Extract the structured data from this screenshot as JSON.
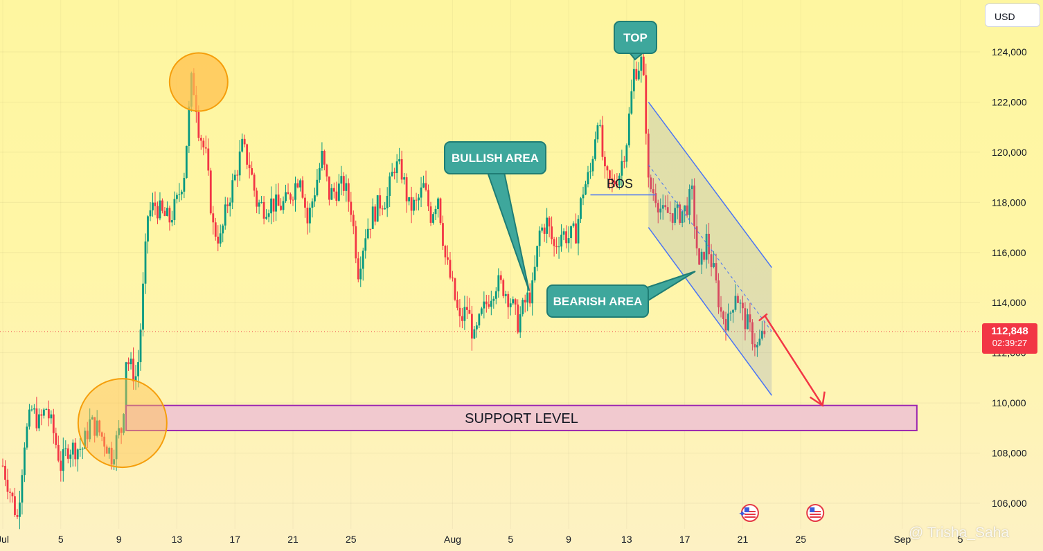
{
  "currency_button": "USD",
  "last_price": "112,848",
  "countdown": "02:39:27",
  "watermark": "@ Trisha_Saha",
  "colors": {
    "up": "#089981",
    "down": "#f23645",
    "callout": "#3ea79c",
    "channel": "#4a74f4",
    "support_border": "#9c27b0",
    "support_fill": "#f1c9cf",
    "highlight": "#ffc04d"
  },
  "chart_data": {
    "type": "candlestick",
    "ylim": [
      105000,
      125500
    ],
    "y_ticks": [
      106000,
      108000,
      110000,
      112000,
      114000,
      116000,
      118000,
      120000,
      122000,
      124000
    ],
    "y_tick_labels": [
      "106,000",
      "108,000",
      "110,000",
      "112,000",
      "114,000",
      "116,000",
      "118,000",
      "120,000",
      "122,000",
      "124,000"
    ],
    "x_labels": [
      "Jul",
      "5",
      "9",
      "13",
      "17",
      "21",
      "25",
      "Aug",
      "5",
      "9",
      "13",
      "17",
      "21",
      "25",
      "Sep",
      "5"
    ],
    "x_label_dates": [
      "2025-07-01",
      "2025-07-05",
      "2025-07-09",
      "2025-07-13",
      "2025-07-17",
      "2025-07-21",
      "2025-07-25",
      "2025-08-01",
      "2025-08-05",
      "2025-08-09",
      "2025-08-13",
      "2025-08-17",
      "2025-08-21",
      "2025-08-25",
      "2025-09-01",
      "2025-09-05"
    ],
    "price_path": [
      [
        "2025-07-01T00:00",
        107500
      ],
      [
        "2025-07-01T12:00",
        106500
      ],
      [
        "2025-07-02T00:00",
        105400
      ],
      [
        "2025-07-02T12:00",
        108500
      ],
      [
        "2025-07-03T00:00",
        109700
      ],
      [
        "2025-07-03T12:00",
        109200
      ],
      [
        "2025-07-04T00:00",
        109800
      ],
      [
        "2025-07-04T12:00",
        108800
      ],
      [
        "2025-07-05T00:00",
        107500
      ],
      [
        "2025-07-05T12:00",
        108200
      ],
      [
        "2025-07-06T12:00",
        108200
      ],
      [
        "2025-07-07T00:00",
        109200
      ],
      [
        "2025-07-07T12:00",
        109000
      ],
      [
        "2025-07-08T00:00",
        108500
      ],
      [
        "2025-07-08T12:00",
        107900
      ],
      [
        "2025-07-09T00:00",
        108800
      ],
      [
        "2025-07-09T06:00",
        109000
      ],
      [
        "2025-07-09T12:00",
        111800
      ],
      [
        "2025-07-10T00:00",
        111200
      ],
      [
        "2025-07-10T06:00",
        111000
      ],
      [
        "2025-07-10T12:00",
        113000
      ],
      [
        "2025-07-11T00:00",
        117500
      ],
      [
        "2025-07-11T12:00",
        117900
      ],
      [
        "2025-07-12T00:00",
        117500
      ],
      [
        "2025-07-12T12:00",
        117300
      ],
      [
        "2025-07-13T00:00",
        118000
      ],
      [
        "2025-07-13T12:00",
        119200
      ],
      [
        "2025-07-14T00:00",
        122800
      ],
      [
        "2025-07-14T06:00",
        122400
      ],
      [
        "2025-07-14T12:00",
        121000
      ],
      [
        "2025-07-15T00:00",
        119800
      ],
      [
        "2025-07-15T12:00",
        117000
      ],
      [
        "2025-07-16T00:00",
        116500
      ],
      [
        "2025-07-16T12:00",
        118000
      ],
      [
        "2025-07-17T00:00",
        119000
      ],
      [
        "2025-07-17T12:00",
        120200
      ],
      [
        "2025-07-18T00:00",
        119500
      ],
      [
        "2025-07-18T12:00",
        118000
      ],
      [
        "2025-07-19T00:00",
        117800
      ],
      [
        "2025-07-19T12:00",
        118000
      ],
      [
        "2025-07-20T00:00",
        117800
      ],
      [
        "2025-07-20T12:00",
        118000
      ],
      [
        "2025-07-21T00:00",
        118500
      ],
      [
        "2025-07-21T12:00",
        119200
      ],
      [
        "2025-07-22T00:00",
        117200
      ],
      [
        "2025-07-22T12:00",
        118500
      ],
      [
        "2025-07-23T00:00",
        119800
      ],
      [
        "2025-07-23T12:00",
        118300
      ],
      [
        "2025-07-24T00:00",
        118500
      ],
      [
        "2025-07-24T12:00",
        118700
      ],
      [
        "2025-07-25T00:00",
        117800
      ],
      [
        "2025-07-25T12:00",
        115300
      ],
      [
        "2025-07-26T00:00",
        116800
      ],
      [
        "2025-07-26T12:00",
        117500
      ],
      [
        "2025-07-27T00:00",
        118000
      ],
      [
        "2025-07-27T12:00",
        118200
      ],
      [
        "2025-07-28T00:00",
        119500
      ],
      [
        "2025-07-28T12:00",
        119200
      ],
      [
        "2025-07-29T00:00",
        117800
      ],
      [
        "2025-07-29T12:00",
        117900
      ],
      [
        "2025-07-30T00:00",
        118600
      ],
      [
        "2025-07-30T12:00",
        117500
      ],
      [
        "2025-07-31T00:00",
        118300
      ],
      [
        "2025-07-31T12:00",
        115800
      ],
      [
        "2025-08-01T00:00",
        114600
      ],
      [
        "2025-08-01T12:00",
        113200
      ],
      [
        "2025-08-02T00:00",
        113800
      ],
      [
        "2025-08-02T12:00",
        112500
      ],
      [
        "2025-08-03T00:00",
        113500
      ],
      [
        "2025-08-03T12:00",
        114200
      ],
      [
        "2025-08-04T00:00",
        114800
      ],
      [
        "2025-08-04T12:00",
        114600
      ],
      [
        "2025-08-05T00:00",
        114100
      ],
      [
        "2025-08-05T12:00",
        113200
      ],
      [
        "2025-08-06T00:00",
        114000
      ],
      [
        "2025-08-06T12:00",
        114500
      ],
      [
        "2025-08-07T00:00",
        116800
      ],
      [
        "2025-08-07T12:00",
        117200
      ],
      [
        "2025-08-08T00:00",
        116200
      ],
      [
        "2025-08-08T12:00",
        116800
      ],
      [
        "2025-08-09T00:00",
        116600
      ],
      [
        "2025-08-09T12:00",
        116800
      ],
      [
        "2025-08-10T00:00",
        118500
      ],
      [
        "2025-08-10T12:00",
        119200
      ],
      [
        "2025-08-11T00:00",
        121500
      ],
      [
        "2025-08-11T12:00",
        119000
      ],
      [
        "2025-08-12T00:00",
        118700
      ],
      [
        "2025-08-12T12:00",
        119200
      ],
      [
        "2025-08-13T00:00",
        120500
      ],
      [
        "2025-08-13T12:00",
        123200
      ],
      [
        "2025-08-14T00:00",
        123600
      ],
      [
        "2025-08-14T06:00",
        122300
      ],
      [
        "2025-08-14T12:00",
        118700
      ],
      [
        "2025-08-15T00:00",
        118300
      ],
      [
        "2025-08-15T12:00",
        117500
      ],
      [
        "2025-08-16T00:00",
        117600
      ],
      [
        "2025-08-16T12:00",
        117500
      ],
      [
        "2025-08-17T00:00",
        117700
      ],
      [
        "2025-08-17T12:00",
        118300
      ],
      [
        "2025-08-18T00:00",
        115200
      ],
      [
        "2025-08-18T12:00",
        116500
      ],
      [
        "2025-08-19T00:00",
        115200
      ],
      [
        "2025-08-19T12:00",
        113600
      ],
      [
        "2025-08-20T00:00",
        113200
      ],
      [
        "2025-08-20T12:00",
        114500
      ],
      [
        "2025-08-21T00:00",
        113500
      ],
      [
        "2025-08-21T12:00",
        112900
      ],
      [
        "2025-08-22T00:00",
        112200
      ],
      [
        "2025-08-22T12:00",
        112848
      ]
    ],
    "annotations": {
      "top": "TOP",
      "bullish": "BULLISH AREA",
      "bearish": "BEARISH AREA",
      "bos": "BOS",
      "support": "SUPPORT LEVEL"
    },
    "support_range": [
      108900,
      109900
    ],
    "bos_level": 118300,
    "projection_target": 109900
  }
}
